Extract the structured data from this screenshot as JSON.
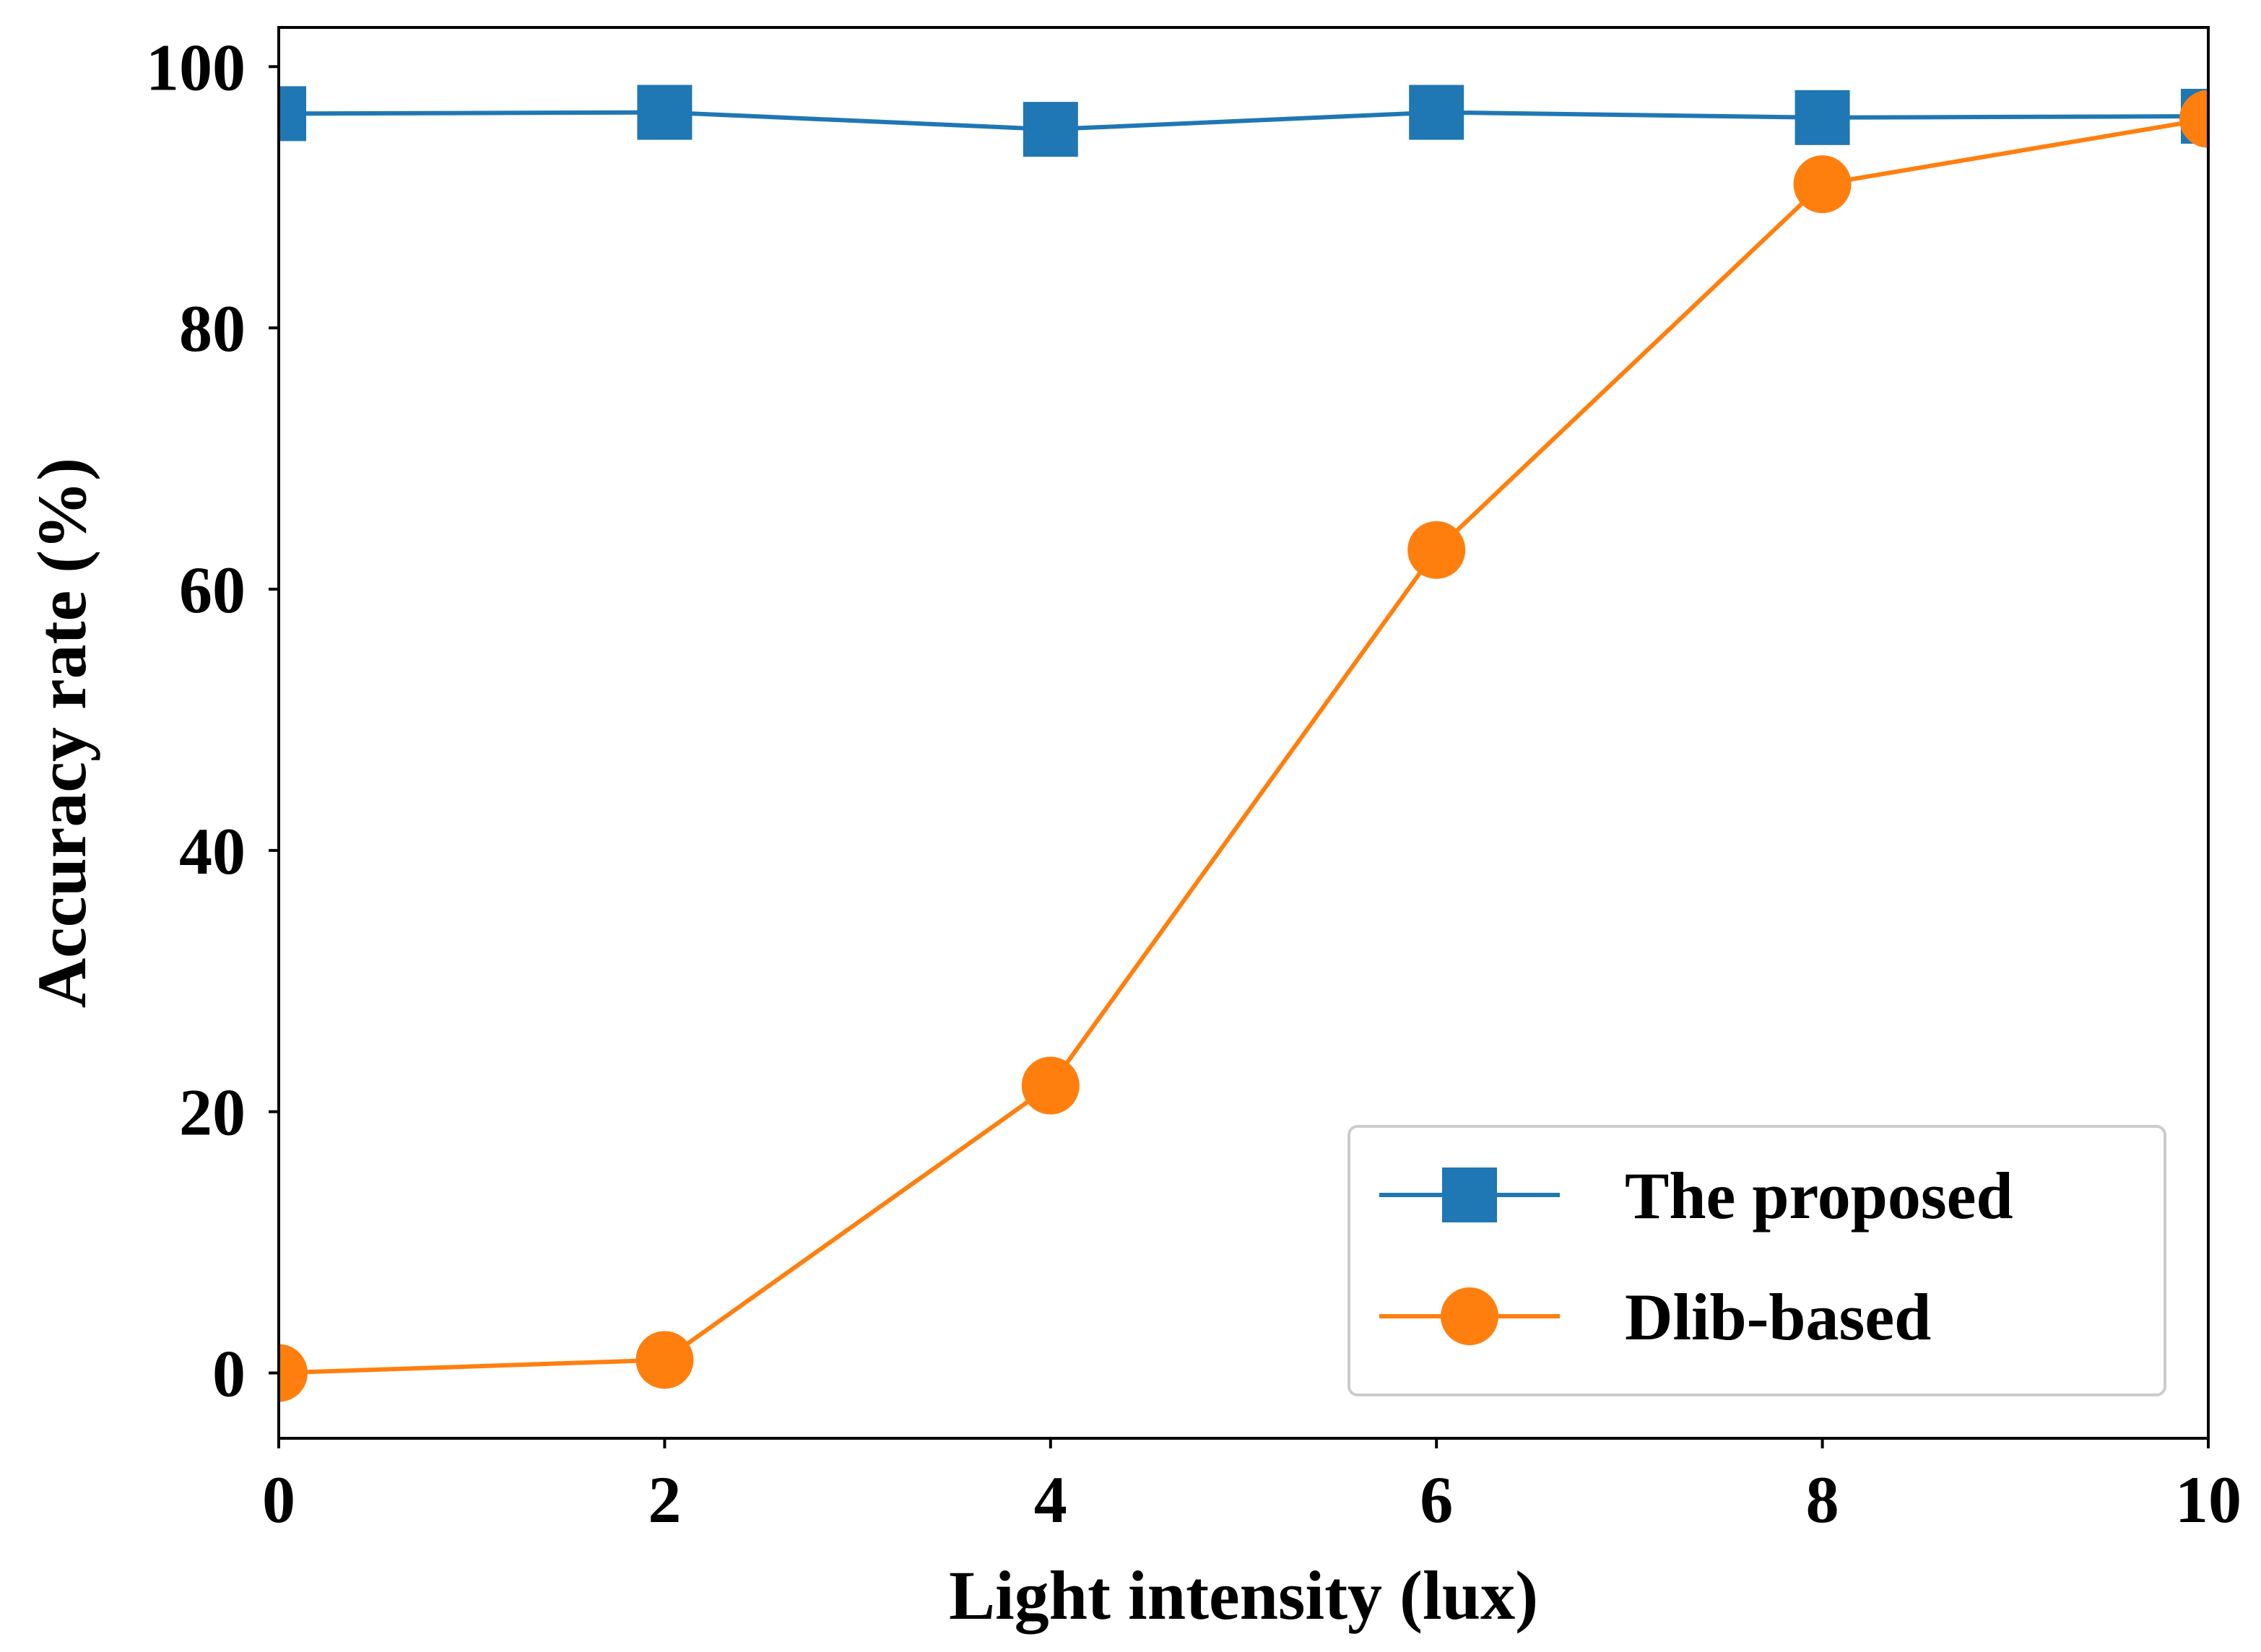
{
  "chart_data": {
    "type": "line",
    "title": "",
    "xlabel": "Light intensity (lux)",
    "ylabel": "Accuracy rate (%)",
    "xlim": [
      0,
      10
    ],
    "ylim": [
      -5,
      103
    ],
    "xticks": [
      0,
      2,
      4,
      6,
      8,
      10
    ],
    "yticks": [
      0,
      20,
      40,
      60,
      80,
      100
    ],
    "grid": false,
    "legend_position": "lower-right",
    "series": [
      {
        "name": "The proposed",
        "marker": "square",
        "color": "#1f77b4",
        "x": [
          0,
          2,
          4,
          6,
          8,
          10
        ],
        "y": [
          96.4,
          96.5,
          95.2,
          96.5,
          96.1,
          96.2
        ]
      },
      {
        "name": "Dlib-based",
        "marker": "circle",
        "color": "#ff7f0e",
        "x": [
          0,
          2,
          4,
          6,
          8,
          10
        ],
        "y": [
          0,
          1,
          22,
          63,
          91,
          96
        ]
      }
    ]
  }
}
